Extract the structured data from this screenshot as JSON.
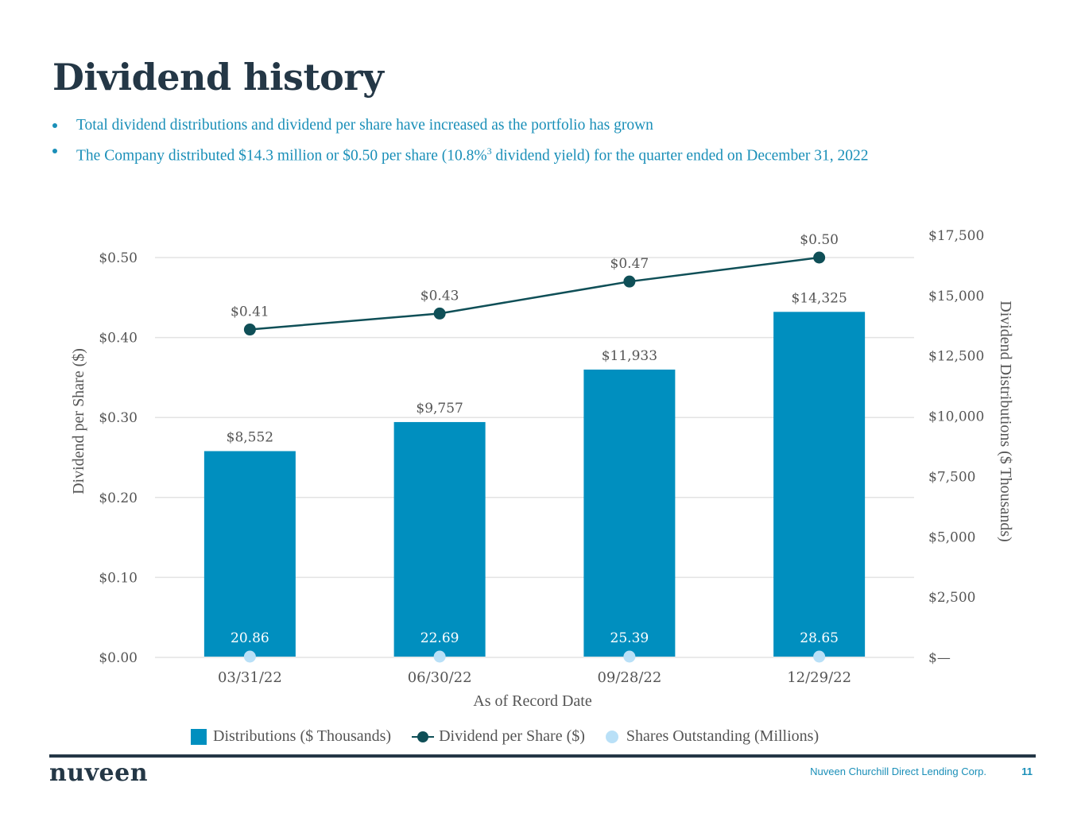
{
  "page": {
    "title": "Dividend history",
    "bullets": [
      {
        "text": "Total dividend distributions and dividend per share have increased as the portfolio has grown",
        "sup": "",
        "tail": ""
      },
      {
        "text": "The Company distributed $14.3 million or $0.50 per share (10.8%",
        "sup": "3",
        "tail": " dividend yield) for the quarter ended on December 31, 2022"
      }
    ],
    "footer": {
      "logo": "nuveen",
      "company": "Nuveen Churchill Direct Lending Corp.",
      "page_number": "11"
    }
  },
  "colors": {
    "bar": "#008fbf",
    "line": "#0f4f57",
    "shares_dot": "#b9e0f7",
    "title": "#243746",
    "bullet_text": "#1a8fb8",
    "grid": "#e3e3e3"
  },
  "chart_data": {
    "type": "bar",
    "title": "",
    "xlabel": "As of Record Date",
    "ylabel_left": "Dividend per Share ($)",
    "ylabel_right": "Dividend Distributions ($ Thousands)",
    "categories": [
      "03/31/22",
      "06/30/22",
      "09/28/22",
      "12/29/22"
    ],
    "ylim_left": [
      0,
      0.5
    ],
    "ylim_right": [
      0,
      17500
    ],
    "left_ticks": [
      {
        "value": 0.0,
        "label": "$0.00"
      },
      {
        "value": 0.1,
        "label": "$0.10"
      },
      {
        "value": 0.2,
        "label": "$0.20"
      },
      {
        "value": 0.3,
        "label": "$0.30"
      },
      {
        "value": 0.4,
        "label": "$0.40"
      },
      {
        "value": 0.5,
        "label": "$0.50"
      }
    ],
    "right_ticks": [
      {
        "value": 0,
        "label": "$—"
      },
      {
        "value": 2500,
        "label": "$2,500"
      },
      {
        "value": 5000,
        "label": "$5,000"
      },
      {
        "value": 7500,
        "label": "$7,500"
      },
      {
        "value": 10000,
        "label": "$10,000"
      },
      {
        "value": 12500,
        "label": "$12,500"
      },
      {
        "value": 15000,
        "label": "$15,000"
      },
      {
        "value": 17500,
        "label": "$17,500"
      }
    ],
    "grid": true,
    "legend_position": "bottom",
    "series": [
      {
        "name": "Distributions ($ Thousands)",
        "type": "bar",
        "axis": "right",
        "values": [
          8552,
          9757,
          11933,
          14325
        ],
        "labels": [
          "$8,552",
          "$9,757",
          "$11,933",
          "$14,325"
        ]
      },
      {
        "name": "Dividend per Share ($)",
        "type": "line",
        "axis": "left",
        "values": [
          0.41,
          0.43,
          0.47,
          0.5
        ],
        "labels": [
          "$0.41",
          "$0.43",
          "$0.47",
          "$0.50"
        ]
      },
      {
        "name": "Shares Outstanding (Millions)",
        "type": "scatter",
        "axis": "none",
        "values": [
          20.86,
          22.69,
          25.39,
          28.65
        ],
        "labels": [
          "20.86",
          "22.69",
          "25.39",
          "28.65"
        ]
      }
    ]
  }
}
